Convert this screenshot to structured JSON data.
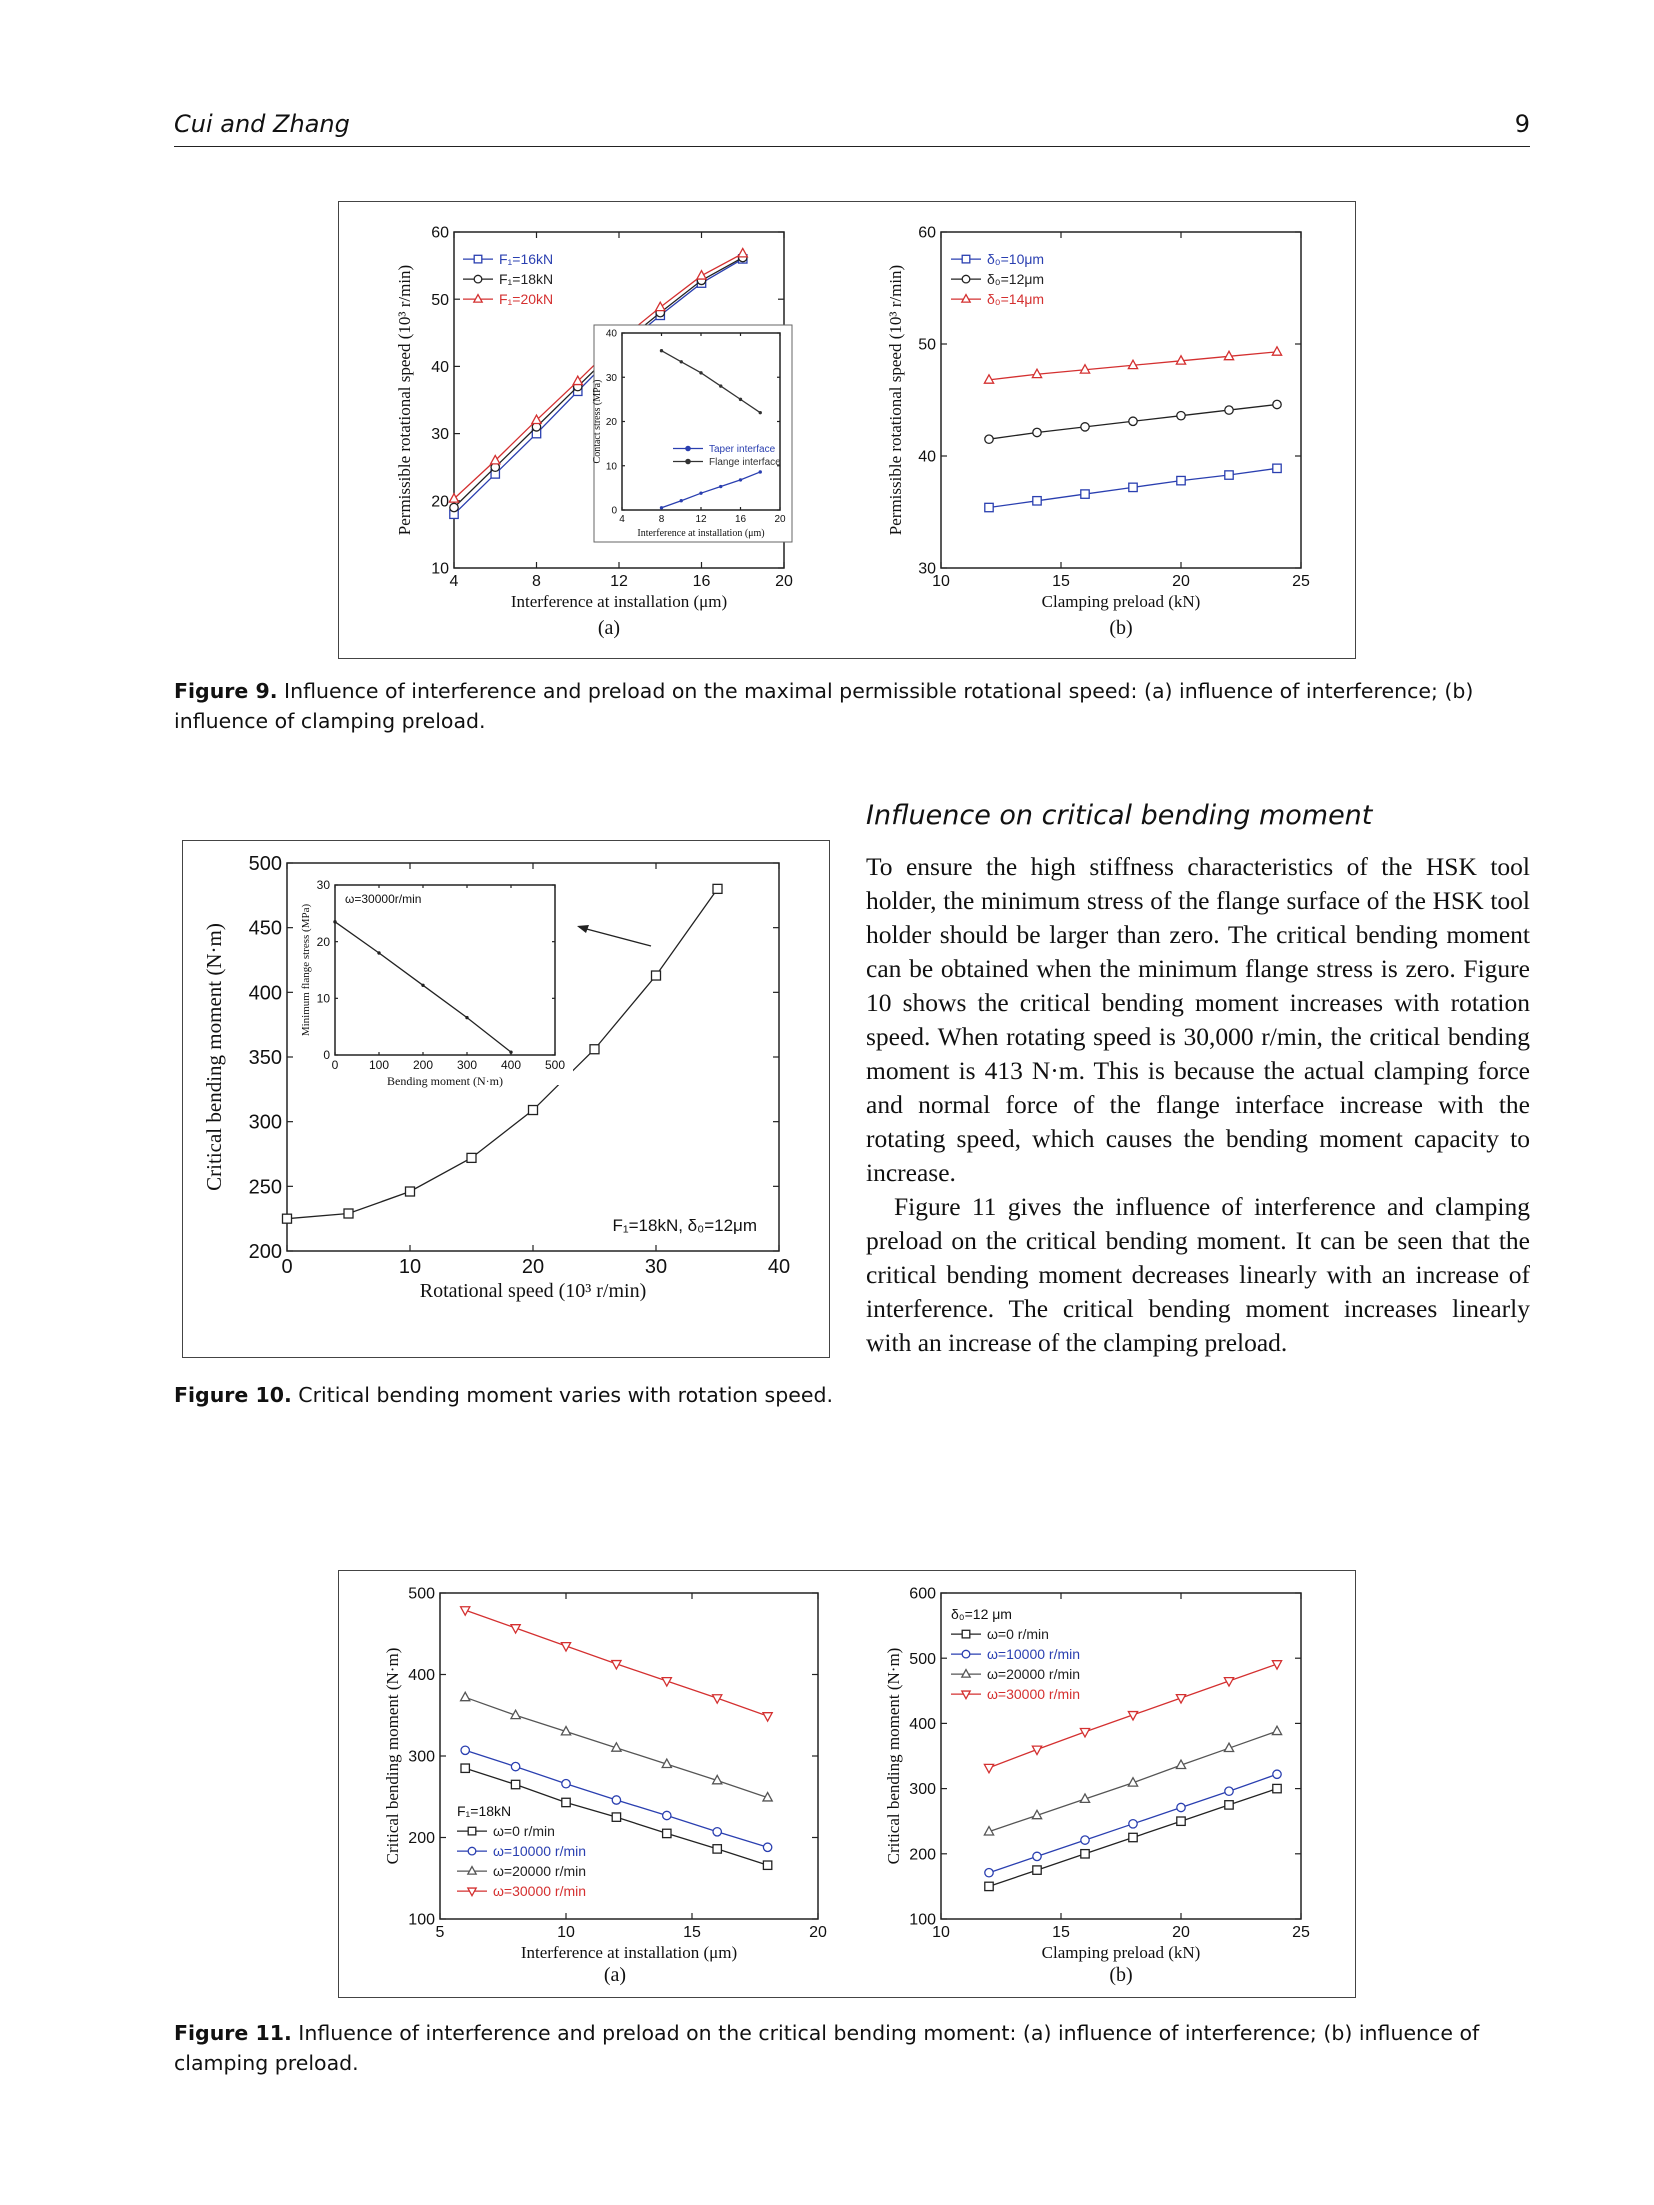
{
  "header": {
    "authors": "Cui and Zhang",
    "page_number": "9"
  },
  "section": {
    "heading": "Influence on critical bending moment",
    "paragraphs": [
      "To ensure the high stiffness characteristics of the HSK tool holder, the minimum stress of the flange surface of the HSK tool holder should be larger than zero. The critical bending moment can be obtained when the minimum flange stress is zero. Figure 10 shows the critical bending moment increases with rotation speed. When rotating speed is 30,000 r/min, the critical bending moment is 413 N·m. This is because the actual clamping force and normal force of the flange interface increase with the rotating speed, which causes the bending moment capacity to increase.",
      "Figure 11 gives the influence of interference and clamping preload on the critical bending moment. It can be seen that the critical bending moment decreases linearly with an increase of interference. The critical bending moment increases linearly with an increase of the clamping preload."
    ]
  },
  "captions": {
    "fig9_label": "Figure 9.",
    "fig9_text": "Influence of interference and preload on the maximal permissible rotational speed: (a) influence of interference; (b) influence of clamping preload.",
    "fig10_label": "Figure 10.",
    "fig10_text": "Critical bending moment varies with rotation speed.",
    "fig11_label": "Figure 11.",
    "fig11_text": "Influence of interference and preload on the critical bending moment: (a) influence of interference; (b) influence of clamping preload."
  },
  "chart_data": [
    {
      "id": "fig9a",
      "type": "line",
      "panel_label": "(a)",
      "xlabel": "Interference at installation (μm)",
      "ylabel": "Permissible rotational speed (10³ r/min)",
      "xlim": [
        4,
        20
      ],
      "ylim": [
        10,
        60
      ],
      "xticks": [
        "4",
        "8",
        "12",
        "16",
        "20"
      ],
      "yticks": [
        "10",
        "20",
        "30",
        "40",
        "50",
        "60"
      ],
      "legend_position": "top-left",
      "series": [
        {
          "name": "F₁=16kN",
          "color": "#2a3fb0",
          "marker": "square",
          "x": [
            4,
            6,
            8,
            10,
            12,
            14,
            16,
            18
          ],
          "y": [
            18,
            24,
            30,
            36.3,
            42.5,
            47.6,
            52.4,
            56
          ]
        },
        {
          "name": "F₁=18kN",
          "color": "#222222",
          "marker": "circle",
          "x": [
            4,
            6,
            8,
            10,
            12,
            14,
            16,
            18
          ],
          "y": [
            19,
            25,
            31,
            37,
            43,
            48,
            52.8,
            56.2
          ]
        },
        {
          "name": "F₁=20kN",
          "color": "#d43030",
          "marker": "triangle",
          "x": [
            4,
            6,
            8,
            10,
            12,
            14,
            16,
            18
          ],
          "y": [
            20.3,
            26,
            32,
            37.8,
            43.8,
            48.8,
            53.5,
            56.8
          ]
        }
      ],
      "inset": {
        "xlabel": "Interference at installation (μm)",
        "ylabel": "Contact stress (MPa)",
        "xlim": [
          4,
          20
        ],
        "ylim": [
          0,
          40
        ],
        "xticks": [
          "4",
          "8",
          "12",
          "16",
          "20"
        ],
        "yticks": [
          "0",
          "10",
          "20",
          "30",
          "40"
        ],
        "series": [
          {
            "name": "Taper interface",
            "color": "#2a3fb0",
            "x": [
              8,
              10,
              12,
              14,
              16,
              18
            ],
            "y": [
              0.5,
              2.1,
              3.8,
              5.3,
              6.8,
              8.6
            ]
          },
          {
            "name": "Flange interface",
            "color": "#333333",
            "x": [
              8,
              10,
              12,
              14,
              16,
              18
            ],
            "y": [
              36,
              33.5,
              31,
              28,
              25,
              22
            ]
          }
        ]
      }
    },
    {
      "id": "fig9b",
      "type": "line",
      "panel_label": "(b)",
      "xlabel": "Clamping preload (kN)",
      "ylabel": "Permissible rotational speed (10³ r/min)",
      "xlim": [
        10,
        25
      ],
      "ylim": [
        30,
        60
      ],
      "xticks": [
        "10",
        "15",
        "20",
        "25"
      ],
      "yticks": [
        "30",
        "40",
        "50",
        "60"
      ],
      "legend_position": "top-left",
      "series": [
        {
          "name": "δ₀=10μm",
          "color": "#2a3fb0",
          "marker": "square",
          "x": [
            12,
            14,
            16,
            18,
            20,
            22,
            24
          ],
          "y": [
            35.4,
            36,
            36.6,
            37.2,
            37.8,
            38.3,
            38.9
          ]
        },
        {
          "name": "δ₀=12μm",
          "color": "#222222",
          "marker": "circle",
          "x": [
            12,
            14,
            16,
            18,
            20,
            22,
            24
          ],
          "y": [
            41.5,
            42.1,
            42.6,
            43.1,
            43.6,
            44.1,
            44.6
          ]
        },
        {
          "name": "δ₀=14μm",
          "color": "#d43030",
          "marker": "triangle",
          "x": [
            12,
            14,
            16,
            18,
            20,
            22,
            24
          ],
          "y": [
            46.8,
            47.3,
            47.7,
            48.1,
            48.5,
            48.9,
            49.3
          ]
        }
      ]
    },
    {
      "id": "fig10",
      "type": "line",
      "xlabel": "Rotational speed (10³ r/min)",
      "ylabel": "Critical bending moment (N·m)",
      "xlim": [
        0,
        40
      ],
      "ylim": [
        200,
        500
      ],
      "xticks": [
        "0",
        "10",
        "20",
        "30",
        "40"
      ],
      "yticks": [
        "200",
        "250",
        "300",
        "350",
        "400",
        "450",
        "500"
      ],
      "annotation": "F₁=18kN, δ₀=12μm",
      "series": [
        {
          "name": "",
          "color": "#222222",
          "marker": "square",
          "x": [
            0,
            5,
            10,
            15,
            20,
            25,
            30,
            35
          ],
          "y": [
            225,
            229,
            246,
            272,
            309,
            356,
            413,
            480
          ]
        }
      ],
      "inset": {
        "title": "ω=30000r/min",
        "xlabel": "Bending moment (N·m)",
        "ylabel": "Minimum flange stress (MPa)",
        "xlim": [
          0,
          500
        ],
        "ylim": [
          0,
          30
        ],
        "xticks": [
          "0",
          "100",
          "200",
          "300",
          "400",
          "500"
        ],
        "yticks": [
          "0",
          "10",
          "20",
          "30"
        ],
        "series": [
          {
            "name": "",
            "color": "#222222",
            "x": [
              0,
              100,
              200,
              300,
              400
            ],
            "y": [
              23.5,
              18,
              12.3,
              6.6,
              0.5
            ]
          }
        ]
      }
    },
    {
      "id": "fig11a",
      "type": "line",
      "panel_label": "(a)",
      "xlabel": "Interference at installation (μm)",
      "ylabel": "Critical bending moment (N·m)",
      "xlim": [
        5,
        20
      ],
      "ylim": [
        100,
        500
      ],
      "xticks": [
        "5",
        "10",
        "15",
        "20"
      ],
      "yticks": [
        "100",
        "200",
        "300",
        "400",
        "500"
      ],
      "legend_title": "F₁=18kN",
      "legend_position": "bottom-left",
      "series": [
        {
          "name": "ω=0 r/min",
          "color": "#222222",
          "marker": "square",
          "x": [
            6,
            8,
            10,
            12,
            14,
            16,
            18
          ],
          "y": [
            285,
            265,
            243,
            225,
            205,
            186,
            166
          ]
        },
        {
          "name": "ω=10000 r/min",
          "color": "#2a3fb0",
          "marker": "circle",
          "x": [
            6,
            8,
            10,
            12,
            14,
            16,
            18
          ],
          "y": [
            307,
            287,
            266,
            246,
            227,
            207,
            188
          ]
        },
        {
          "name": "ω=20000 r/min",
          "color": "#555555",
          "marker": "triangle",
          "x": [
            6,
            8,
            10,
            12,
            14,
            16,
            18
          ],
          "y": [
            372,
            350,
            330,
            310,
            290,
            270,
            249
          ]
        },
        {
          "name": "ω=30000 r/min",
          "color": "#d43030",
          "marker": "invtriangle",
          "x": [
            6,
            8,
            10,
            12,
            14,
            16,
            18
          ],
          "y": [
            479,
            457,
            435,
            413,
            392,
            371,
            349
          ]
        }
      ]
    },
    {
      "id": "fig11b",
      "type": "line",
      "panel_label": "(b)",
      "xlabel": "Clamping preload (kN)",
      "ylabel": "Critical bending moment (N·m)",
      "xlim": [
        10,
        25
      ],
      "ylim": [
        100,
        600
      ],
      "xticks": [
        "10",
        "15",
        "20",
        "25"
      ],
      "yticks": [
        "100",
        "200",
        "300",
        "400",
        "500",
        "600"
      ],
      "legend_title": "δ₀=12 μm",
      "legend_position": "top-left",
      "series": [
        {
          "name": "ω=0 r/min",
          "color": "#222222",
          "marker": "square",
          "x": [
            12,
            14,
            16,
            18,
            20,
            22,
            24
          ],
          "y": [
            150,
            175,
            200,
            225,
            250,
            275,
            300
          ]
        },
        {
          "name": "ω=10000 r/min",
          "color": "#2a3fb0",
          "marker": "circle",
          "x": [
            12,
            14,
            16,
            18,
            20,
            22,
            24
          ],
          "y": [
            171,
            196,
            221,
            246,
            271,
            296,
            322
          ]
        },
        {
          "name": "ω=20000 r/min",
          "color": "#555555",
          "marker": "triangle",
          "x": [
            12,
            14,
            16,
            18,
            20,
            22,
            24
          ],
          "y": [
            234,
            259,
            284,
            309,
            336,
            362,
            388
          ]
        },
        {
          "name": "ω=30000 r/min",
          "color": "#d43030",
          "marker": "invtriangle",
          "x": [
            12,
            14,
            16,
            18,
            20,
            22,
            24
          ],
          "y": [
            332,
            360,
            387,
            413,
            439,
            465,
            491
          ]
        }
      ]
    }
  ]
}
